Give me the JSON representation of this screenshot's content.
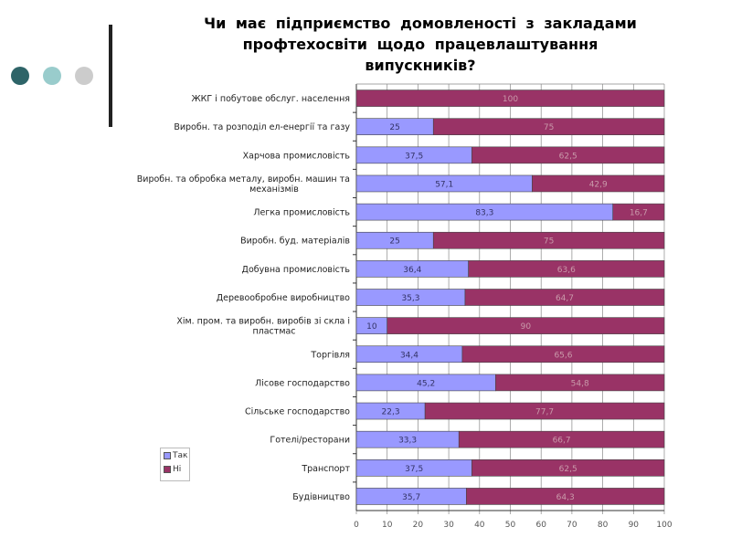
{
  "colors": {
    "dot1": "#2e6468",
    "dot2": "#99cccc",
    "dot3": "#cccccc",
    "yes": "#9999ff",
    "no": "#993366",
    "grid": "#888888"
  },
  "chart_data": {
    "type": "bar",
    "stacked": true,
    "orientation": "horizontal",
    "title": "Чи має підприємство домовленості з закладами профтехосвіти щодо працевлаштування випускників?",
    "categories": [
      "ЖКГ і побутове обслуг. населення",
      "Виробн. та розподіл ел-енергії та газу",
      "Харчова промисловість",
      "Виробн. та обробка металу, виробн. машин та механізмів",
      "Легка промисловість",
      "Виробн. буд. матеріалів",
      "Добувна промисловість",
      "Деревообробне виробництво",
      "Хім. пром. та виробн. виробів зі скла і пластмас",
      "Торгівля",
      "Лісове господарство",
      "Сільське господарство",
      "Готелі/ресторани",
      "Транспорт",
      "Будівництво"
    ],
    "series": [
      {
        "name": "Так",
        "values": [
          0,
          25,
          37.5,
          57.1,
          83.3,
          25,
          36.4,
          35.3,
          10,
          34.4,
          45.2,
          22.3,
          33.3,
          37.5,
          35.7
        ],
        "labels": [
          "0",
          "25",
          "37,5",
          "57,1",
          "83,3",
          "25",
          "36,4",
          "35,3",
          "10",
          "34,4",
          "45,2",
          "22,3",
          "33,3",
          "37,5",
          "35,7"
        ]
      },
      {
        "name": "Ні",
        "values": [
          100,
          75,
          62.5,
          42.9,
          16.7,
          75,
          63.6,
          64.7,
          90,
          65.6,
          54.8,
          77.7,
          66.7,
          62.5,
          64.3
        ],
        "labels": [
          "100",
          "75",
          "62,5",
          "42,9",
          "16,7",
          "75",
          "63,6",
          "64,7",
          "90",
          "65,6",
          "54,8",
          "77,7",
          "66,7",
          "62,5",
          "64,3"
        ]
      }
    ],
    "xlim": [
      0,
      100
    ],
    "xticks": [
      "0",
      "10",
      "20",
      "30",
      "40",
      "50",
      "60",
      "70",
      "80",
      "90",
      "100"
    ],
    "grid": true,
    "legend": "left-bottom"
  }
}
